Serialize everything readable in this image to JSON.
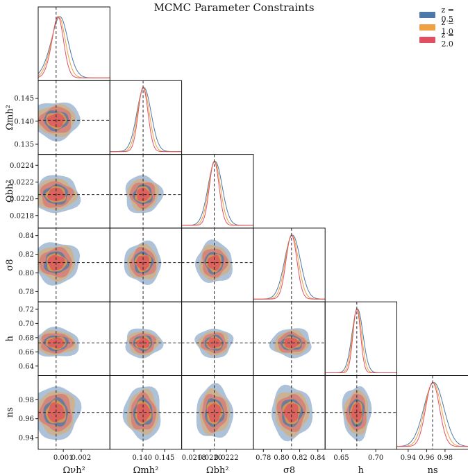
{
  "chart_data": {
    "type": "corner",
    "title": "MCMC Parameter Constraints",
    "parameters": [
      {
        "key": "mnu",
        "label": "Ωνh²",
        "fid": 0.0006,
        "range": [
          -0.0004,
          0.0036
        ],
        "ticks": [
          0.001,
          0.002
        ],
        "tick_labels": [
          "0.001",
          "0.002"
        ],
        "sigma": 0.00035
      },
      {
        "key": "omh2",
        "label": "Ωmh²",
        "fid": 0.1402,
        "range": [
          0.1328,
          0.1488
        ],
        "ticks": [
          0.135,
          0.14,
          0.145
        ],
        "tick_labels": [
          "0.135",
          "0.140",
          "0.145"
        ],
        "sigma": 0.0011
      },
      {
        "key": "obh2",
        "label": "Ωbh²",
        "fid": 0.02205,
        "range": [
          0.02165,
          0.02253
        ],
        "ticks": [
          0.0218,
          0.022,
          0.0222,
          0.0224
        ],
        "tick_labels": [
          "0.0218",
          "0.0220",
          "0.0222",
          "0.0224"
        ],
        "sigma": 6e-05
      },
      {
        "key": "s8",
        "label": "σ8",
        "fid": 0.811,
        "range": [
          0.769,
          0.848
        ],
        "ticks": [
          0.78,
          0.8,
          0.82,
          0.84
        ],
        "tick_labels": [
          "0.78",
          "0.80",
          "0.82",
          "0.84"
        ],
        "sigma": 0.006
      },
      {
        "key": "h",
        "label": "h",
        "fid": 0.6725,
        "range": [
          0.6266,
          0.7305
        ],
        "ticks": [
          0.64,
          0.66,
          0.68,
          0.7,
          0.72
        ],
        "tick_labels": [
          "0.64",
          "0.66",
          "0.68",
          "0.70",
          "0.72"
        ],
        "sigma": 0.0055
      },
      {
        "key": "ns",
        "label": "ns",
        "fid": 0.9665,
        "range": [
          0.9277,
          1.0055
        ],
        "ticks": [
          0.94,
          0.96,
          0.98
        ],
        "tick_labels": [
          "0.94",
          "0.96",
          "0.98"
        ],
        "sigma": 0.0075
      }
    ],
    "y_tick_labels_shown": {
      "omh2": [
        "0.135",
        "0.140",
        "0.145"
      ],
      "obh2": [
        "0.0218",
        "0.0220",
        "0.0222",
        "0.0224"
      ],
      "s8": [
        "0.78",
        "0.80",
        "0.82",
        "0.84"
      ],
      "h": [
        "0.64",
        "0.66",
        "0.68",
        "0.70",
        "0.72"
      ],
      "ns": [
        "0.94",
        "0.96",
        "0.98"
      ]
    },
    "x_tick_labels_shown": {
      "mnu": [
        "0.001",
        "0.002"
      ],
      "omh2": [
        "0.140",
        "0.145"
      ],
      "obh2": [
        "0.0218",
        "0.0220",
        "0.0222"
      ],
      "s8": [
        "0.78",
        "0.80",
        "0.82",
        "0.84"
      ],
      "h": [
        "0.65",
        "0.70"
      ],
      "ns": [
        "0.94",
        "0.96",
        "0.98"
      ]
    },
    "series": [
      {
        "name": "z = 0.5",
        "color": "#4a78a8",
        "scale": 1.45
      },
      {
        "name": "z = 1.0",
        "color": "#f0a040",
        "scale": 1.2
      },
      {
        "name": "z = 2.0",
        "color": "#e05060",
        "scale": 1.0
      }
    ],
    "fiducial_line_style": "dashed"
  }
}
